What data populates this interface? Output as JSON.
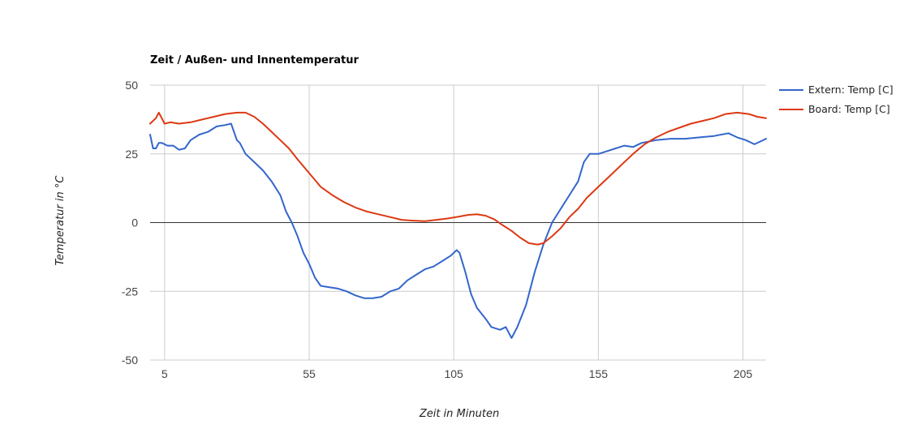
{
  "chart_data": {
    "type": "line",
    "title": "Zeit / Außen- und Innentemperatur",
    "xlabel": "Zeit in Minuten",
    "ylabel": "Temperatur in °C",
    "xlim": [
      0,
      213
    ],
    "ylim": [
      -50,
      50
    ],
    "x_ticks": [
      5,
      55,
      105,
      155,
      205
    ],
    "y_ticks": [
      50,
      25,
      0,
      -25,
      -50
    ],
    "grid": true,
    "legend_position": "right",
    "series": [
      {
        "name": "Extern: Temp [C]",
        "color": "#3366cc",
        "points": [
          [
            0,
            32
          ],
          [
            1,
            27
          ],
          [
            2,
            27
          ],
          [
            3,
            29
          ],
          [
            4,
            29
          ],
          [
            6,
            28
          ],
          [
            8,
            28
          ],
          [
            10,
            26.5
          ],
          [
            12,
            27
          ],
          [
            14,
            30
          ],
          [
            17,
            32
          ],
          [
            20,
            33
          ],
          [
            23,
            35
          ],
          [
            26,
            35.5
          ],
          [
            28,
            36
          ],
          [
            30,
            30
          ],
          [
            31,
            29
          ],
          [
            33,
            25
          ],
          [
            36,
            22
          ],
          [
            39,
            19
          ],
          [
            42,
            15
          ],
          [
            45,
            10
          ],
          [
            47,
            4
          ],
          [
            49,
            0
          ],
          [
            51,
            -5
          ],
          [
            53,
            -11
          ],
          [
            55,
            -15
          ],
          [
            57,
            -20
          ],
          [
            59,
            -23
          ],
          [
            62,
            -23.5
          ],
          [
            65,
            -24
          ],
          [
            68,
            -25
          ],
          [
            71,
            -26.5
          ],
          [
            74,
            -27.5
          ],
          [
            77,
            -27.5
          ],
          [
            80,
            -27
          ],
          [
            83,
            -25
          ],
          [
            86,
            -24
          ],
          [
            89,
            -21
          ],
          [
            92,
            -19
          ],
          [
            95,
            -17
          ],
          [
            98,
            -16
          ],
          [
            101,
            -14
          ],
          [
            104,
            -12
          ],
          [
            106,
            -10
          ],
          [
            107,
            -11
          ],
          [
            109,
            -18
          ],
          [
            111,
            -26
          ],
          [
            113,
            -31
          ],
          [
            116,
            -35
          ],
          [
            118,
            -38
          ],
          [
            121,
            -39
          ],
          [
            123,
            -38
          ],
          [
            125,
            -42
          ],
          [
            127,
            -38
          ],
          [
            130,
            -30
          ],
          [
            133,
            -18
          ],
          [
            136,
            -8
          ],
          [
            139,
            0
          ],
          [
            142,
            5
          ],
          [
            145,
            10
          ],
          [
            148,
            15
          ],
          [
            150,
            22
          ],
          [
            152,
            25
          ],
          [
            155,
            25
          ],
          [
            158,
            26
          ],
          [
            161,
            27
          ],
          [
            164,
            28
          ],
          [
            167,
            27.5
          ],
          [
            170,
            29
          ],
          [
            175,
            30
          ],
          [
            180,
            30.5
          ],
          [
            185,
            30.5
          ],
          [
            190,
            31
          ],
          [
            195,
            31.5
          ],
          [
            200,
            32.5
          ],
          [
            203,
            31
          ],
          [
            206,
            30
          ],
          [
            209,
            28.5
          ],
          [
            211,
            29.5
          ],
          [
            213,
            30.5
          ]
        ]
      },
      {
        "name": "Board: Temp [C]",
        "color": "#dc3912",
        "points": [
          [
            0,
            36
          ],
          [
            2,
            38
          ],
          [
            3,
            40
          ],
          [
            4,
            38
          ],
          [
            5,
            36
          ],
          [
            7,
            36.5
          ],
          [
            10,
            36
          ],
          [
            14,
            36.5
          ],
          [
            18,
            37.5
          ],
          [
            22,
            38.5
          ],
          [
            26,
            39.5
          ],
          [
            30,
            40
          ],
          [
            33,
            40
          ],
          [
            36,
            38.5
          ],
          [
            39,
            36
          ],
          [
            42,
            33
          ],
          [
            45,
            30
          ],
          [
            48,
            27
          ],
          [
            51,
            23
          ],
          [
            55,
            18
          ],
          [
            59,
            13
          ],
          [
            63,
            10
          ],
          [
            67,
            7.5
          ],
          [
            71,
            5.5
          ],
          [
            75,
            4
          ],
          [
            79,
            3
          ],
          [
            83,
            2
          ],
          [
            87,
            1
          ],
          [
            91,
            0.7
          ],
          [
            95,
            0.5
          ],
          [
            99,
            1
          ],
          [
            103,
            1.5
          ],
          [
            107,
            2.2
          ],
          [
            110,
            2.8
          ],
          [
            113,
            3
          ],
          [
            116,
            2.5
          ],
          [
            119,
            1.2
          ],
          [
            122,
            -1
          ],
          [
            125,
            -3
          ],
          [
            128,
            -5.5
          ],
          [
            131,
            -7.5
          ],
          [
            134,
            -8
          ],
          [
            136,
            -7.5
          ],
          [
            139,
            -5
          ],
          [
            142,
            -2
          ],
          [
            145,
            2
          ],
          [
            148,
            5
          ],
          [
            151,
            9
          ],
          [
            155,
            13
          ],
          [
            159,
            17
          ],
          [
            163,
            21
          ],
          [
            167,
            25
          ],
          [
            171,
            28.5
          ],
          [
            175,
            31
          ],
          [
            179,
            33
          ],
          [
            183,
            34.5
          ],
          [
            187,
            36
          ],
          [
            191,
            37
          ],
          [
            195,
            38
          ],
          [
            199,
            39.5
          ],
          [
            203,
            40
          ],
          [
            207,
            39.5
          ],
          [
            210,
            38.5
          ],
          [
            213,
            38
          ]
        ]
      }
    ]
  }
}
